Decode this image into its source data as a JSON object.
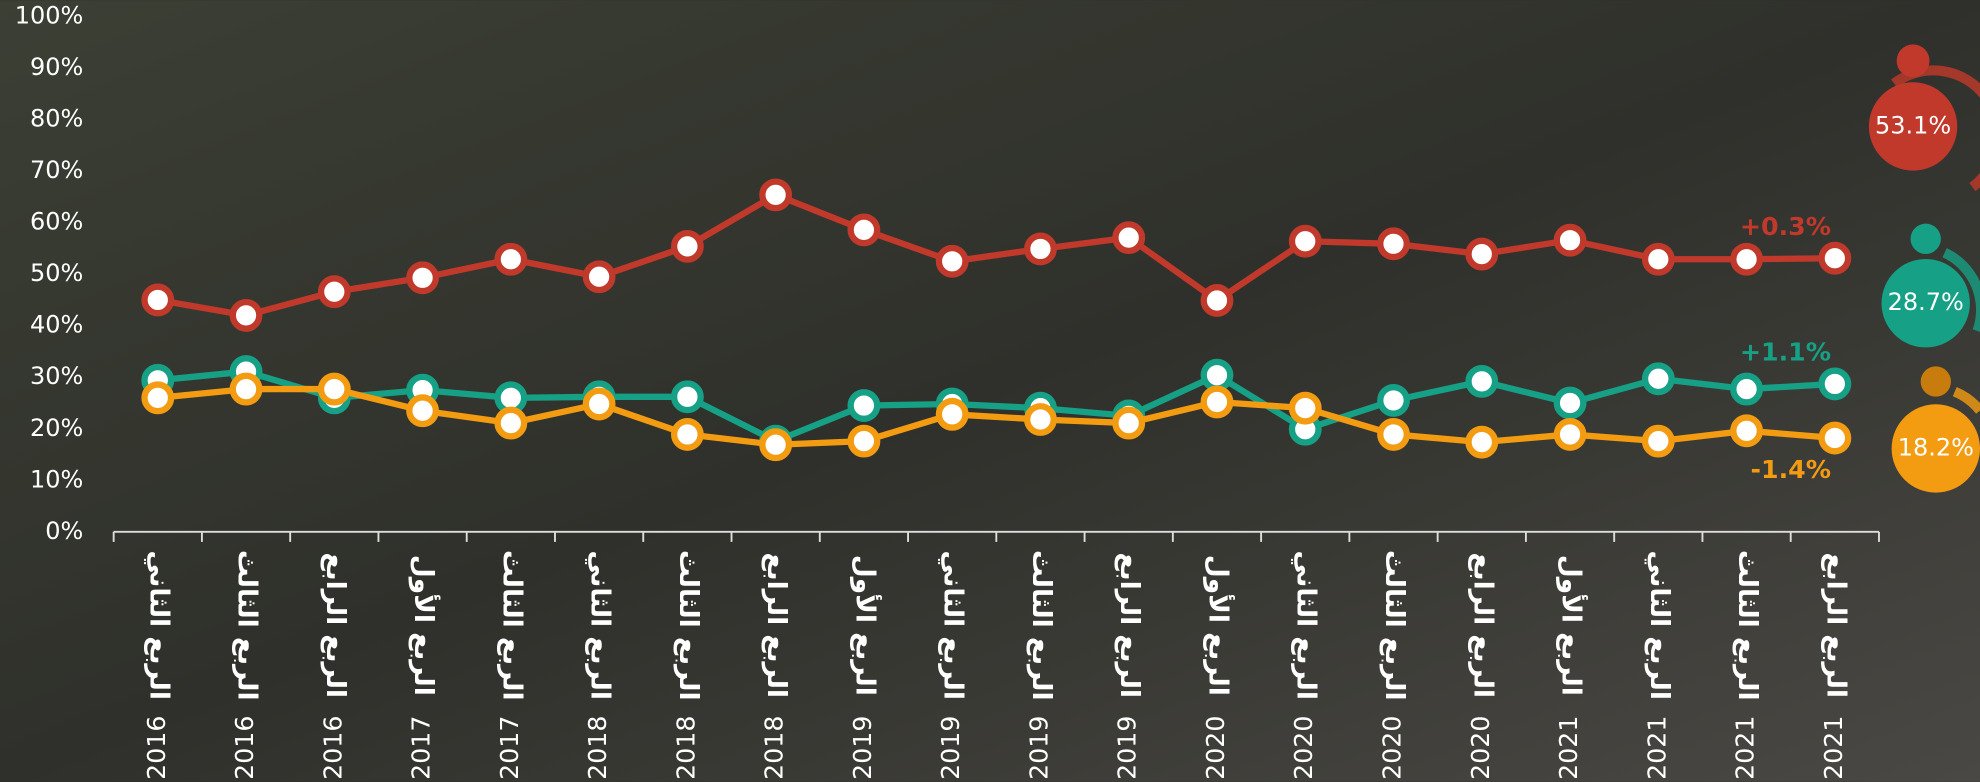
{
  "chart_data": {
    "type": "line",
    "categories": [
      "الربع الثاني",
      "الربع الثالث",
      "الربع الرابع",
      "الربع الأول",
      "الربع الثالث",
      "الربع الثاني",
      "الربع الثالث",
      "الربع الرابع",
      "الربع الأول",
      "الربع الثاني",
      "الربع الثالث",
      "الربع الرابع",
      "الربع الأول",
      "الربع الثاني",
      "الربع الثالث",
      "الربع الرابع",
      "الربع الأول",
      "الربع الثاني",
      "الربع الثالث",
      "الربع الرابع"
    ],
    "category_years": [
      "2016",
      "2016",
      "2016",
      "2017",
      "2017",
      "2018",
      "2018",
      "2018",
      "2019",
      "2019",
      "2019",
      "2019",
      "2020",
      "2020",
      "2020",
      "2020",
      "2021",
      "2021",
      "2021",
      "2021"
    ],
    "ylim": [
      0,
      100
    ],
    "yticks": [
      {
        "value": 0,
        "label": "0%"
      },
      {
        "value": 10,
        "label": "10%"
      },
      {
        "value": 20,
        "label": "20%"
      },
      {
        "value": 30,
        "label": "30%"
      },
      {
        "value": 40,
        "label": "40%"
      },
      {
        "value": 50,
        "label": "50%"
      },
      {
        "value": 60,
        "label": "60%"
      },
      {
        "value": 70,
        "label": "70%"
      },
      {
        "value": 80,
        "label": "80%"
      },
      {
        "value": 90,
        "label": "90%"
      },
      {
        "value": 100,
        "label": "100%"
      }
    ],
    "grid": false,
    "series": [
      {
        "color": "#c0392b",
        "values": [
          45,
          42,
          46.6,
          49.3,
          52.9,
          49.5,
          55.4,
          65.4,
          58.6,
          52.5,
          54.9,
          57.1,
          44.9,
          56.4,
          55.9,
          53.9,
          56.6,
          52.9,
          52.9,
          53.1
        ],
        "change_label": "+0.3%",
        "end_label": {
          "value": 53.1,
          "label": "53.1%"
        }
      },
      {
        "color": "#16a085",
        "values": [
          29.4,
          31.1,
          26,
          27.5,
          26,
          26.2,
          26.2,
          17.6,
          24.5,
          24.8,
          24,
          22.5,
          30.4,
          19.9,
          25.5,
          29.2,
          25,
          29.7,
          27.7,
          28.7
        ],
        "change_label": "+1.1%",
        "end_label": {
          "value": 28.7,
          "label": "28.7%"
        }
      },
      {
        "color": "#f39c12",
        "values": [
          26,
          27.7,
          27.7,
          23.5,
          21.1,
          24.8,
          18.9,
          16.9,
          17.6,
          22.8,
          21.8,
          21.1,
          25.2,
          24,
          18.9,
          17.4,
          18.9,
          17.6,
          19.6,
          18.2
        ],
        "change_label": "-1.4%",
        "end_label": {
          "value": 18.2,
          "label": "18.2%"
        }
      }
    ]
  }
}
